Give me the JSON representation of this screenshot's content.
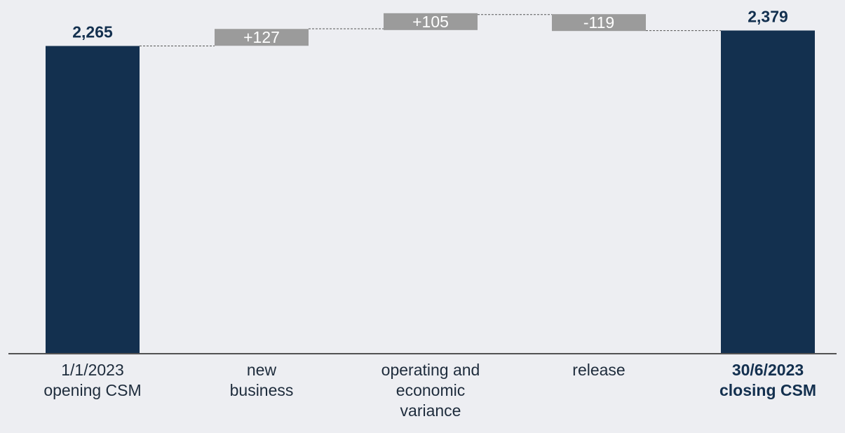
{
  "chart_data": {
    "type": "bar",
    "subtype": "waterfall",
    "categories": [
      [
        "1/1/2023",
        "opening CSM"
      ],
      [
        "new",
        "business"
      ],
      [
        "operating and",
        "economic",
        "variance"
      ],
      [
        "release"
      ],
      [
        "30/6/2023",
        "closing CSM"
      ]
    ],
    "category_bold": [
      false,
      false,
      false,
      false,
      true
    ],
    "values": [
      2265,
      127,
      105,
      -119,
      2379
    ],
    "value_labels": [
      "2,265",
      "+127",
      "+105",
      "-119",
      "2,379"
    ],
    "kinds": [
      "total",
      "delta",
      "delta",
      "delta",
      "total"
    ],
    "title": "",
    "xlabel": "",
    "ylabel": "",
    "ylim": [
      0,
      2420
    ],
    "grid": false,
    "legend": "none",
    "colors": {
      "total_bar": "#13304f",
      "delta_bar": "#9b9b9b",
      "delta_text": "#ffffff",
      "total_text": "#13304f",
      "connector": "#555555",
      "axis": "#1e1e1e",
      "background": "#edeef2"
    }
  }
}
